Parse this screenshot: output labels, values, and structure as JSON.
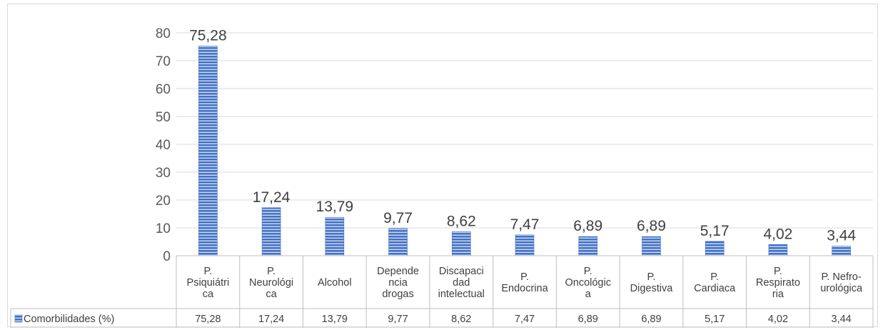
{
  "chart_data": {
    "type": "bar",
    "categories": [
      [
        "P.",
        "Psiquiátri",
        "ca"
      ],
      [
        "P.",
        "Neurológi",
        "ca"
      ],
      [
        "Alcohol"
      ],
      [
        "Depende",
        "ncia",
        "drogas"
      ],
      [
        "Discapaci",
        "dad",
        "intelectual"
      ],
      [
        "P.",
        "Endocrina"
      ],
      [
        "P.",
        "Oncológic",
        "a"
      ],
      [
        "P.",
        "Digestiva"
      ],
      [
        "P.",
        "Cardiaca"
      ],
      [
        "P.",
        "Respirato",
        "ria"
      ],
      [
        "P. Nefro-",
        "urológica"
      ]
    ],
    "series": [
      {
        "name": "Comorbilidades (%)",
        "values": [
          75.28,
          17.24,
          13.79,
          9.77,
          8.62,
          7.47,
          6.89,
          6.89,
          5.17,
          4.02,
          3.44
        ],
        "labels": [
          "75,28",
          "17,24",
          "13,79",
          "9,77",
          "8,62",
          "7,47",
          "6,89",
          "6,89",
          "5,17",
          "4,02",
          "3,44"
        ]
      }
    ],
    "yticks": [
      "0",
      "10",
      "20",
      "30",
      "40",
      "50",
      "60",
      "70",
      "80"
    ],
    "ylim": [
      0,
      80
    ],
    "grid": true,
    "legend": "data-table",
    "colors": {
      "bar": "#4472c4",
      "bar_stripe": "#ffffff",
      "grid": "#d9d9d9",
      "table_border": "#bfbfbf"
    }
  }
}
